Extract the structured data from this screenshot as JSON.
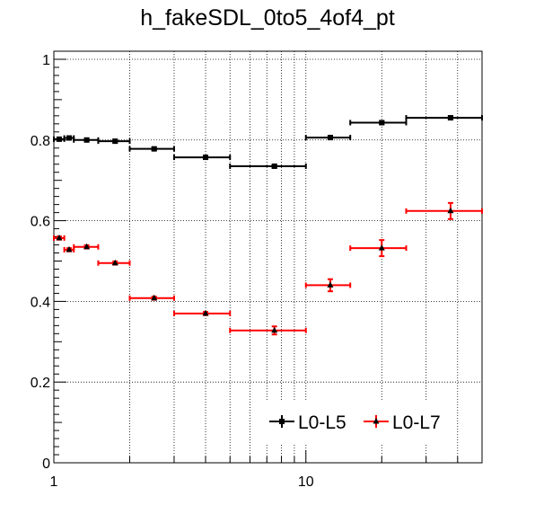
{
  "chart_data": {
    "type": "scatter",
    "title": "h_fakeSDL_0to5_4of4_pt",
    "xlabel": "",
    "ylabel": "",
    "x_scale": "log",
    "xlim": [
      1,
      50
    ],
    "ylim": [
      0,
      1.02
    ],
    "grid": true,
    "legend_position": "bottom-right",
    "x_tick_labels": [
      {
        "value": 1,
        "label": "1"
      },
      {
        "value": 10,
        "label": "10"
      }
    ],
    "y_tick_labels": [
      {
        "value": 0,
        "label": "0"
      },
      {
        "value": 0.2,
        "label": "0.2"
      },
      {
        "value": 0.4,
        "label": "0.4"
      },
      {
        "value": 0.6,
        "label": "0.6"
      },
      {
        "value": 0.8,
        "label": "0.8"
      },
      {
        "value": 1,
        "label": "1"
      }
    ],
    "series": [
      {
        "name": "L0-L5",
        "color": "#000000",
        "marker": "square",
        "points": [
          {
            "x": 1.05,
            "xlo": 1.0,
            "xhi": 1.1,
            "y": 0.802,
            "err": 0.003
          },
          {
            "x": 1.15,
            "xlo": 1.1,
            "xhi": 1.2,
            "y": 0.805,
            "err": 0.003
          },
          {
            "x": 1.35,
            "xlo": 1.2,
            "xhi": 1.5,
            "y": 0.8,
            "err": 0.003
          },
          {
            "x": 1.75,
            "xlo": 1.5,
            "xhi": 2.0,
            "y": 0.797,
            "err": 0.003
          },
          {
            "x": 2.5,
            "xlo": 2.0,
            "xhi": 3.0,
            "y": 0.778,
            "err": 0.003
          },
          {
            "x": 4.0,
            "xlo": 3.0,
            "xhi": 5.0,
            "y": 0.757,
            "err": 0.003
          },
          {
            "x": 7.5,
            "xlo": 5.0,
            "xhi": 10.0,
            "y": 0.735,
            "err": 0.004
          },
          {
            "x": 12.5,
            "xlo": 10.0,
            "xhi": 15.0,
            "y": 0.806,
            "err": 0.004
          },
          {
            "x": 20.0,
            "xlo": 15.0,
            "xhi": 25.0,
            "y": 0.843,
            "err": 0.004
          },
          {
            "x": 37.5,
            "xlo": 25.0,
            "xhi": 50.0,
            "y": 0.855,
            "err": 0.004
          }
        ]
      },
      {
        "name": "L0-L7",
        "color": "#ff0000",
        "marker": "triangle",
        "points": [
          {
            "x": 1.05,
            "xlo": 1.0,
            "xhi": 1.1,
            "y": 0.557,
            "err": 0.004
          },
          {
            "x": 1.15,
            "xlo": 1.1,
            "xhi": 1.2,
            "y": 0.528,
            "err": 0.004
          },
          {
            "x": 1.35,
            "xlo": 1.2,
            "xhi": 1.5,
            "y": 0.535,
            "err": 0.004
          },
          {
            "x": 1.75,
            "xlo": 1.5,
            "xhi": 2.0,
            "y": 0.495,
            "err": 0.004
          },
          {
            "x": 2.5,
            "xlo": 2.0,
            "xhi": 3.0,
            "y": 0.408,
            "err": 0.004
          },
          {
            "x": 4.0,
            "xlo": 3.0,
            "xhi": 5.0,
            "y": 0.37,
            "err": 0.004
          },
          {
            "x": 7.5,
            "xlo": 5.0,
            "xhi": 10.0,
            "y": 0.328,
            "err": 0.01
          },
          {
            "x": 12.5,
            "xlo": 10.0,
            "xhi": 15.0,
            "y": 0.44,
            "err": 0.015
          },
          {
            "x": 20.0,
            "xlo": 15.0,
            "xhi": 25.0,
            "y": 0.532,
            "err": 0.02
          },
          {
            "x": 37.5,
            "xlo": 25.0,
            "xhi": 50.0,
            "y": 0.624,
            "err": 0.02
          }
        ]
      }
    ]
  }
}
